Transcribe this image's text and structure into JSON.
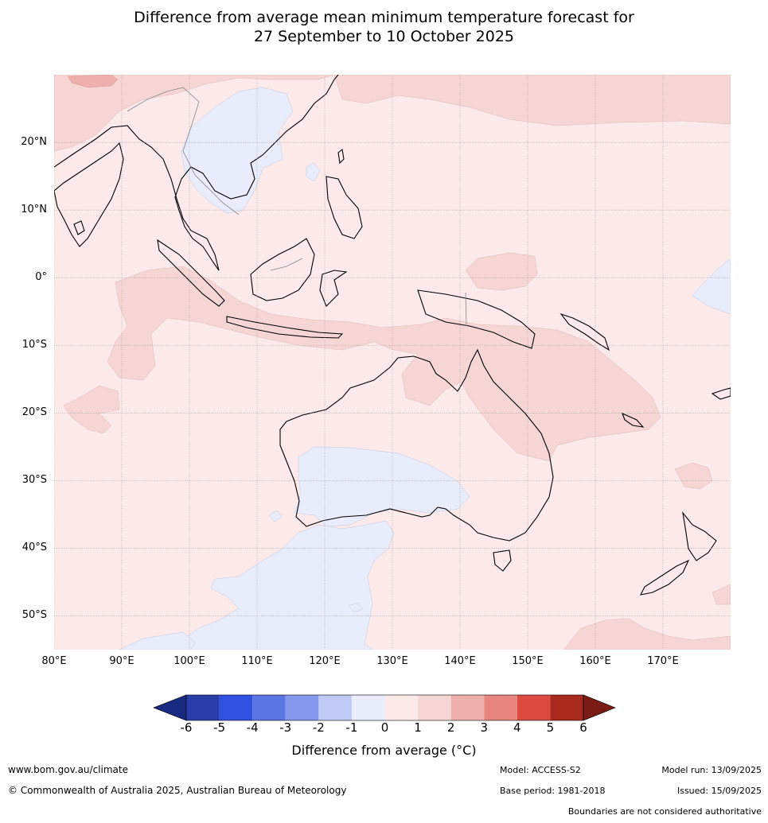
{
  "title_line1": "Difference from average mean minimum temperature forecast for",
  "title_line2": "27 September to 10 October 2025",
  "map": {
    "lat_labels": [
      "20°N",
      "10°N",
      "0°",
      "10°S",
      "20°S",
      "30°S",
      "40°S",
      "50°S"
    ],
    "lon_labels": [
      "80°E",
      "90°E",
      "100°E",
      "110°E",
      "120°E",
      "130°E",
      "140°E",
      "150°E",
      "160°E",
      "170°E"
    ],
    "lat_values": [
      20,
      10,
      0,
      -10,
      -20,
      -30,
      -40,
      -50
    ],
    "lon_values": [
      80,
      90,
      100,
      110,
      120,
      130,
      140,
      150,
      160,
      170
    ],
    "extent": {
      "lon_min": 80,
      "lon_max": 180,
      "lat_min": -55,
      "lat_max": 30
    },
    "background_anomaly_range": "0 to 1",
    "colors": {
      "anom_0_1": "#fbeae9",
      "anom_1_2": "#f5d6d5",
      "anom_2_3": "#eeb0ad",
      "anom_m1_0": "#e8ecfb"
    }
  },
  "colorbar": {
    "ticks": [
      "-6",
      "-5",
      "-4",
      "-3",
      "-2",
      "-1",
      "0",
      "1",
      "2",
      "3",
      "4",
      "5",
      "6"
    ],
    "colors": [
      "#2a3ca7",
      "#3151e1",
      "#5b75e4",
      "#8599ec",
      "#c0c8f4",
      "#e8ecfb",
      "#fbeae9",
      "#f5d6d5",
      "#eeb0ad",
      "#e8857f",
      "#db4b3f",
      "#a8291e"
    ],
    "under_color": "#1a2a80",
    "over_color": "#7a1b15",
    "label": "Difference from average ($^\\circ$C)",
    "label_display": "Difference from average (°C)"
  },
  "footer": {
    "website": "www.bom.gov.au/climate",
    "copyright": "© Commonwealth of Australia 2025, Australian Bureau of Meteorology",
    "model": "Model: ACCESS-S2",
    "base_period": "Base period: 1981-2018",
    "model_run": "Model run: 13/09/2025",
    "issued": "Issued: 15/09/2025",
    "disclaimer": "Boundaries are not considered authoritative"
  }
}
